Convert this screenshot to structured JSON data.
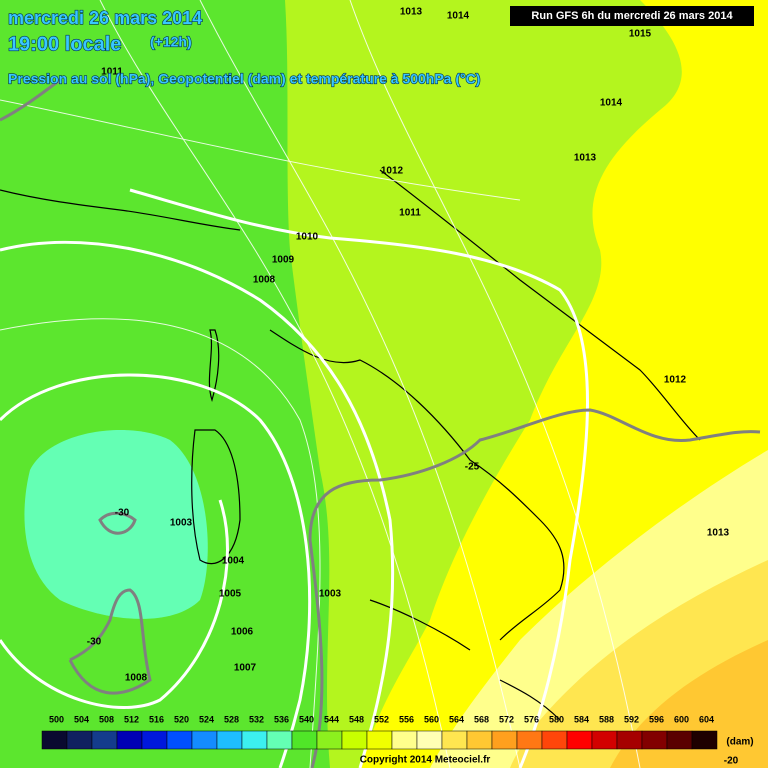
{
  "header": {
    "title": "mercredi 26 mars 2014",
    "time": "19:00 locale",
    "lead": "(+12h)",
    "subtitle": "Pression au sol (hPa), Geopotentiel (dam) et température à 500hPa (°C)",
    "run": "Run GFS 6h du mercredi 26 mars 2014"
  },
  "isobar_labels": [
    "1013",
    "1014",
    "1015",
    "1014",
    "1013",
    "1012",
    "1011",
    "1010",
    "1009",
    "1008",
    "1012",
    "1013",
    "1003",
    "1004",
    "1005",
    "1006",
    "1007",
    "1008",
    "1003",
    "1011"
  ],
  "temperature_labels": [
    "-25",
    "-30",
    "-30",
    "-20"
  ],
  "legend": {
    "unit": "(dam)",
    "items": [
      {
        "label": "500",
        "color": "#0a0a30"
      },
      {
        "label": "504",
        "color": "#102060"
      },
      {
        "label": "508",
        "color": "#143c8c"
      },
      {
        "label": "512",
        "color": "#0000b4"
      },
      {
        "label": "516",
        "color": "#0018dc"
      },
      {
        "label": "520",
        "color": "#0050ff"
      },
      {
        "label": "524",
        "color": "#148cff"
      },
      {
        "label": "528",
        "color": "#1ebeff"
      },
      {
        "label": "532",
        "color": "#3cf0f0"
      },
      {
        "label": "536",
        "color": "#64ffb4"
      },
      {
        "label": "540",
        "color": "#50e628"
      },
      {
        "label": "544",
        "color": "#8cf01e"
      },
      {
        "label": "548",
        "color": "#c8ff00"
      },
      {
        "label": "552",
        "color": "#f0ff00"
      },
      {
        "label": "556",
        "color": "#ffff8c"
      },
      {
        "label": "560",
        "color": "#ffffb4"
      },
      {
        "label": "564",
        "color": "#ffe650"
      },
      {
        "label": "568",
        "color": "#ffc832"
      },
      {
        "label": "572",
        "color": "#ffa01e"
      },
      {
        "label": "576",
        "color": "#ff7814"
      },
      {
        "label": "580",
        "color": "#ff460a"
      },
      {
        "label": "584",
        "color": "#ff0000"
      },
      {
        "label": "588",
        "color": "#d20000"
      },
      {
        "label": "592",
        "color": "#a50000"
      },
      {
        "label": "596",
        "color": "#820000"
      },
      {
        "label": "600",
        "color": "#5a0000"
      },
      {
        "label": "604",
        "color": "#1e0000"
      }
    ]
  },
  "copyright": "Copyright 2014 Meteociel.fr"
}
